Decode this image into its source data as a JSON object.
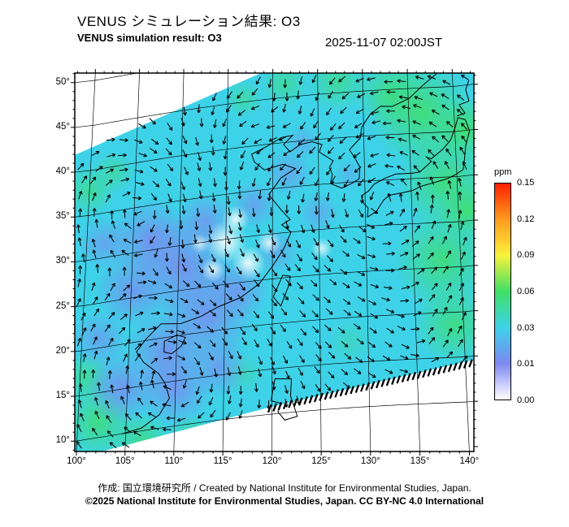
{
  "header": {
    "title_ja": "VENUS シミュレーション結果: O3",
    "title_en": "VENUS simulation result: O3",
    "timestamp": "2025-11-07 02:00JST"
  },
  "footer": {
    "credit": "作成: 国立環境研究所 / Created by National Institute for Environmental Studies, Japan.",
    "copyright": "©2025 National Institute for Environmental Studies, Japan. CC BY-NC 4.0 International"
  },
  "chart_data": {
    "type": "heatmap",
    "subtype": "geographic-simulation-map",
    "title": "VENUS simulation result: O3",
    "variable": "O3",
    "unit": "ppm",
    "timestamp": "2025-11-07 02:00JST",
    "lon_ticks": [
      100,
      105,
      110,
      115,
      120,
      125,
      130,
      135,
      140
    ],
    "lon_tick_labels": [
      "100°",
      "105°",
      "110°",
      "115°",
      "120°",
      "125°",
      "130°",
      "135°",
      "140°"
    ],
    "lat_ticks": [
      10,
      15,
      20,
      25,
      30,
      35,
      40,
      45,
      50
    ],
    "lat_tick_labels": [
      "10°",
      "15°",
      "20°",
      "25°",
      "30°",
      "35°",
      "40°",
      "45°",
      "50°"
    ],
    "colorbar": {
      "unit": "ppm",
      "levels": [
        "0.00",
        "0.01",
        "0.03",
        "0.06",
        "0.09",
        "0.12",
        "0.15"
      ],
      "colors": [
        "#ffffff",
        "#7c88f0",
        "#3ed2e8",
        "#3fdf66",
        "#f8f23c",
        "#ff9b1e",
        "#ff2000"
      ],
      "orientation": "vertical",
      "position": "right"
    },
    "overlays": [
      "wind-vector-arrows",
      "coastlines",
      "latitude-longitude-grid"
    ],
    "field_description": "Satellite-swath style O3 field, mostly 0.01-0.06 ppm; lowest values (white/blue) over east-central China and Yellow Sea area, higher values (green) toward the east and southwest"
  }
}
